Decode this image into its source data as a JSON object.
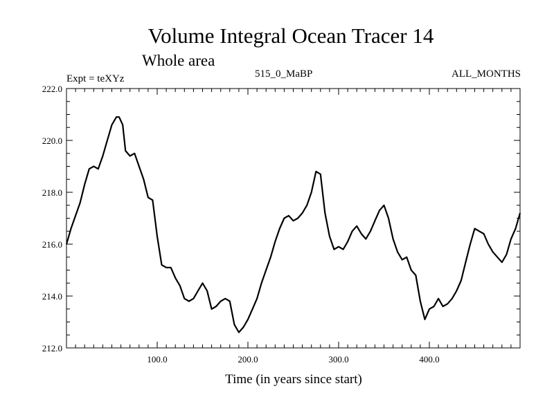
{
  "chart_data": {
    "type": "line",
    "title": "Volume Integral Ocean Tracer 14",
    "subtitle": "Whole area",
    "expt_label": "Expt = teXYz",
    "run_label": "515_0_MaBP",
    "months_label": "ALL_MONTHS",
    "xlabel": "Time (in years since start)",
    "ylabel": "",
    "xlim": [
      0,
      500
    ],
    "ylim": [
      212.0,
      222.0
    ],
    "x_ticks": [
      "100.0",
      "200.0",
      "300.0",
      "400.0"
    ],
    "y_ticks": [
      "212.0",
      "214.0",
      "216.0",
      "218.0",
      "220.0",
      "222.0"
    ],
    "series": [
      {
        "name": "Tracer 14",
        "x": [
          0,
          5,
          10,
          15,
          20,
          25,
          30,
          35,
          40,
          45,
          50,
          55,
          58,
          62,
          65,
          70,
          75,
          80,
          85,
          90,
          95,
          100,
          105,
          110,
          115,
          120,
          125,
          130,
          135,
          140,
          145,
          150,
          155,
          160,
          165,
          170,
          175,
          180,
          185,
          190,
          195,
          200,
          205,
          210,
          215,
          220,
          225,
          230,
          235,
          240,
          245,
          250,
          255,
          260,
          265,
          270,
          275,
          280,
          285,
          290,
          295,
          300,
          305,
          310,
          315,
          320,
          325,
          330,
          335,
          340,
          345,
          350,
          355,
          360,
          365,
          370,
          375,
          380,
          385,
          390,
          395,
          400,
          405,
          410,
          415,
          420,
          425,
          430,
          435,
          440,
          445,
          450,
          455,
          460,
          465,
          470,
          475,
          480,
          485,
          490,
          495,
          500
        ],
        "values": [
          216.0,
          216.6,
          217.1,
          217.6,
          218.3,
          218.9,
          219.0,
          218.9,
          219.4,
          220.0,
          220.6,
          220.9,
          220.9,
          220.6,
          219.6,
          219.4,
          219.5,
          219.0,
          218.5,
          217.8,
          217.7,
          216.3,
          215.2,
          215.1,
          215.1,
          214.7,
          214.4,
          213.9,
          213.8,
          213.9,
          214.2,
          214.5,
          214.2,
          213.5,
          213.6,
          213.8,
          213.9,
          213.8,
          212.9,
          212.6,
          212.8,
          213.1,
          213.5,
          213.9,
          214.5,
          215.0,
          215.5,
          216.1,
          216.6,
          217.0,
          217.1,
          216.9,
          217.0,
          217.2,
          217.5,
          218.0,
          218.8,
          218.7,
          217.2,
          216.3,
          215.8,
          215.9,
          215.8,
          216.1,
          216.5,
          216.7,
          216.4,
          216.2,
          216.5,
          216.9,
          217.3,
          217.5,
          217.0,
          216.2,
          215.7,
          215.4,
          215.5,
          215.0,
          214.8,
          213.8,
          213.1,
          213.5,
          213.6,
          213.9,
          213.6,
          213.7,
          213.9,
          214.2,
          214.6,
          215.3,
          216.0,
          216.6,
          216.5,
          216.4,
          216.0,
          215.7,
          215.5,
          215.3,
          215.6,
          216.2,
          216.6,
          217.2
        ]
      }
    ]
  }
}
